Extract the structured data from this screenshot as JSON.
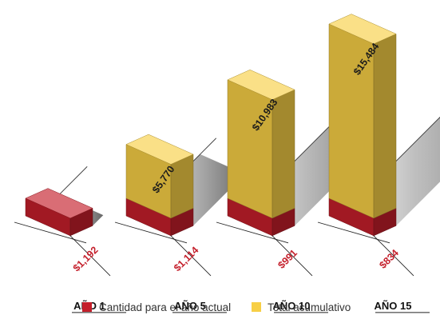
{
  "chart_data": {
    "type": "bar",
    "categories": [
      "AÑO 1",
      "AÑO 5",
      "AÑO 10",
      "AÑO 15"
    ],
    "series": [
      {
        "name": "Cantidad para el año actual",
        "color": "#c41f2b",
        "values": [
          1192,
          1114,
          991,
          834
        ],
        "labels": [
          "$1,192",
          "$1,114",
          "$991",
          "$834"
        ]
      },
      {
        "name": "Total acumulativo",
        "color": "#f7cf46",
        "values": [
          1192,
          5770,
          10983,
          15484
        ],
        "labels": [
          "",
          "$5,770",
          "$10,983",
          "$15,484"
        ]
      }
    ],
    "title": "",
    "xlabel": "",
    "ylabel": "",
    "legend_position": "bottom",
    "grid": false,
    "style": "3d-isometric"
  }
}
